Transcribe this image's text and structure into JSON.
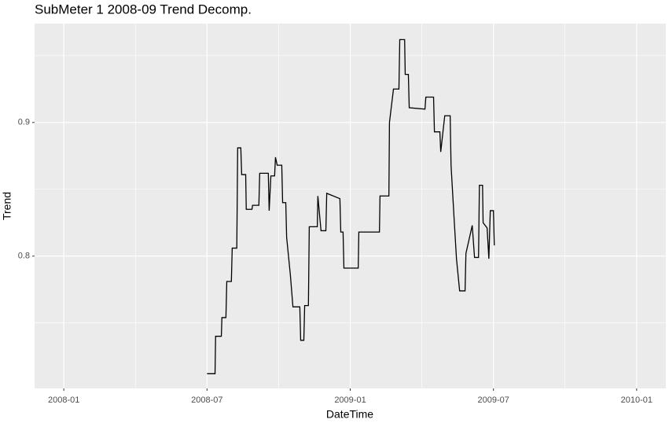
{
  "chart_data": {
    "type": "line",
    "title": "SubMeter 1 2008-09 Trend Decomp.",
    "x_label": "DateTime",
    "y_label": "Trend",
    "color": "#000000",
    "grid": true,
    "step": true,
    "x": [
      2008.5,
      2008.528,
      2008.53,
      2008.55,
      2008.552,
      2008.566,
      2008.569,
      2008.585,
      2008.588,
      2008.604,
      2008.607,
      2008.618,
      2008.621,
      2008.635,
      2008.637,
      2008.657,
      2008.659,
      2008.681,
      2008.684,
      2008.714,
      2008.717,
      2008.723,
      2008.736,
      2008.739,
      2008.745,
      2008.761,
      2008.764,
      2008.775,
      2008.778,
      2008.791,
      2008.8,
      2008.824,
      2008.827,
      2008.838,
      2008.841,
      2008.854,
      2008.857,
      2008.885,
      2008.887,
      2008.898,
      2008.915,
      2008.918,
      2008.964,
      2008.967,
      2008.975,
      2008.978,
      2009.028,
      2009.03,
      2009.102,
      2009.104,
      2009.135,
      2009.137,
      2009.151,
      2009.17,
      2009.173,
      2009.19,
      2009.192,
      2009.203,
      2009.206,
      2009.261,
      2009.264,
      2009.291,
      2009.294,
      2009.313,
      2009.316,
      2009.33,
      2009.349,
      2009.352,
      2009.363,
      2009.371,
      2009.382,
      2009.401,
      2009.404,
      2009.426,
      2009.434,
      2009.448,
      2009.451,
      2009.462,
      2009.464,
      2009.478,
      2009.484,
      2009.489,
      2009.5,
      2009.503
    ],
    "values": [
      0.712,
      0.712,
      0.74,
      0.74,
      0.754,
      0.754,
      0.781,
      0.781,
      0.806,
      0.806,
      0.881,
      0.881,
      0.861,
      0.861,
      0.835,
      0.835,
      0.838,
      0.838,
      0.862,
      0.862,
      0.834,
      0.86,
      0.86,
      0.874,
      0.868,
      0.868,
      0.84,
      0.84,
      0.814,
      0.786,
      0.762,
      0.762,
      0.737,
      0.737,
      0.763,
      0.763,
      0.822,
      0.822,
      0.845,
      0.819,
      0.819,
      0.847,
      0.843,
      0.818,
      0.818,
      0.791,
      0.791,
      0.818,
      0.818,
      0.845,
      0.845,
      0.9,
      0.925,
      0.925,
      0.962,
      0.962,
      0.936,
      0.936,
      0.911,
      0.91,
      0.919,
      0.919,
      0.893,
      0.893,
      0.878,
      0.905,
      0.905,
      0.868,
      0.827,
      0.798,
      0.774,
      0.774,
      0.802,
      0.823,
      0.799,
      0.799,
      0.853,
      0.853,
      0.825,
      0.821,
      0.798,
      0.834,
      0.834,
      0.808
    ],
    "xlim": [
      2007.898,
      2010.102
    ],
    "xticks": [
      {
        "value": 2008,
        "label": "2008-01"
      },
      {
        "value": 2008.5,
        "label": "2008-07"
      },
      {
        "value": 2009,
        "label": "2009-01"
      },
      {
        "value": 2009.5,
        "label": "2009-07"
      },
      {
        "value": 2010,
        "label": "2010-01"
      }
    ],
    "x_minor_grid": [
      2008.25,
      2008.75,
      2009.25,
      2009.75
    ],
    "ylim": [
      0.701,
      0.974
    ],
    "yticks": [
      0.8,
      0.9
    ],
    "y_minor_grid": [
      0.75,
      0.85,
      0.95
    ]
  }
}
